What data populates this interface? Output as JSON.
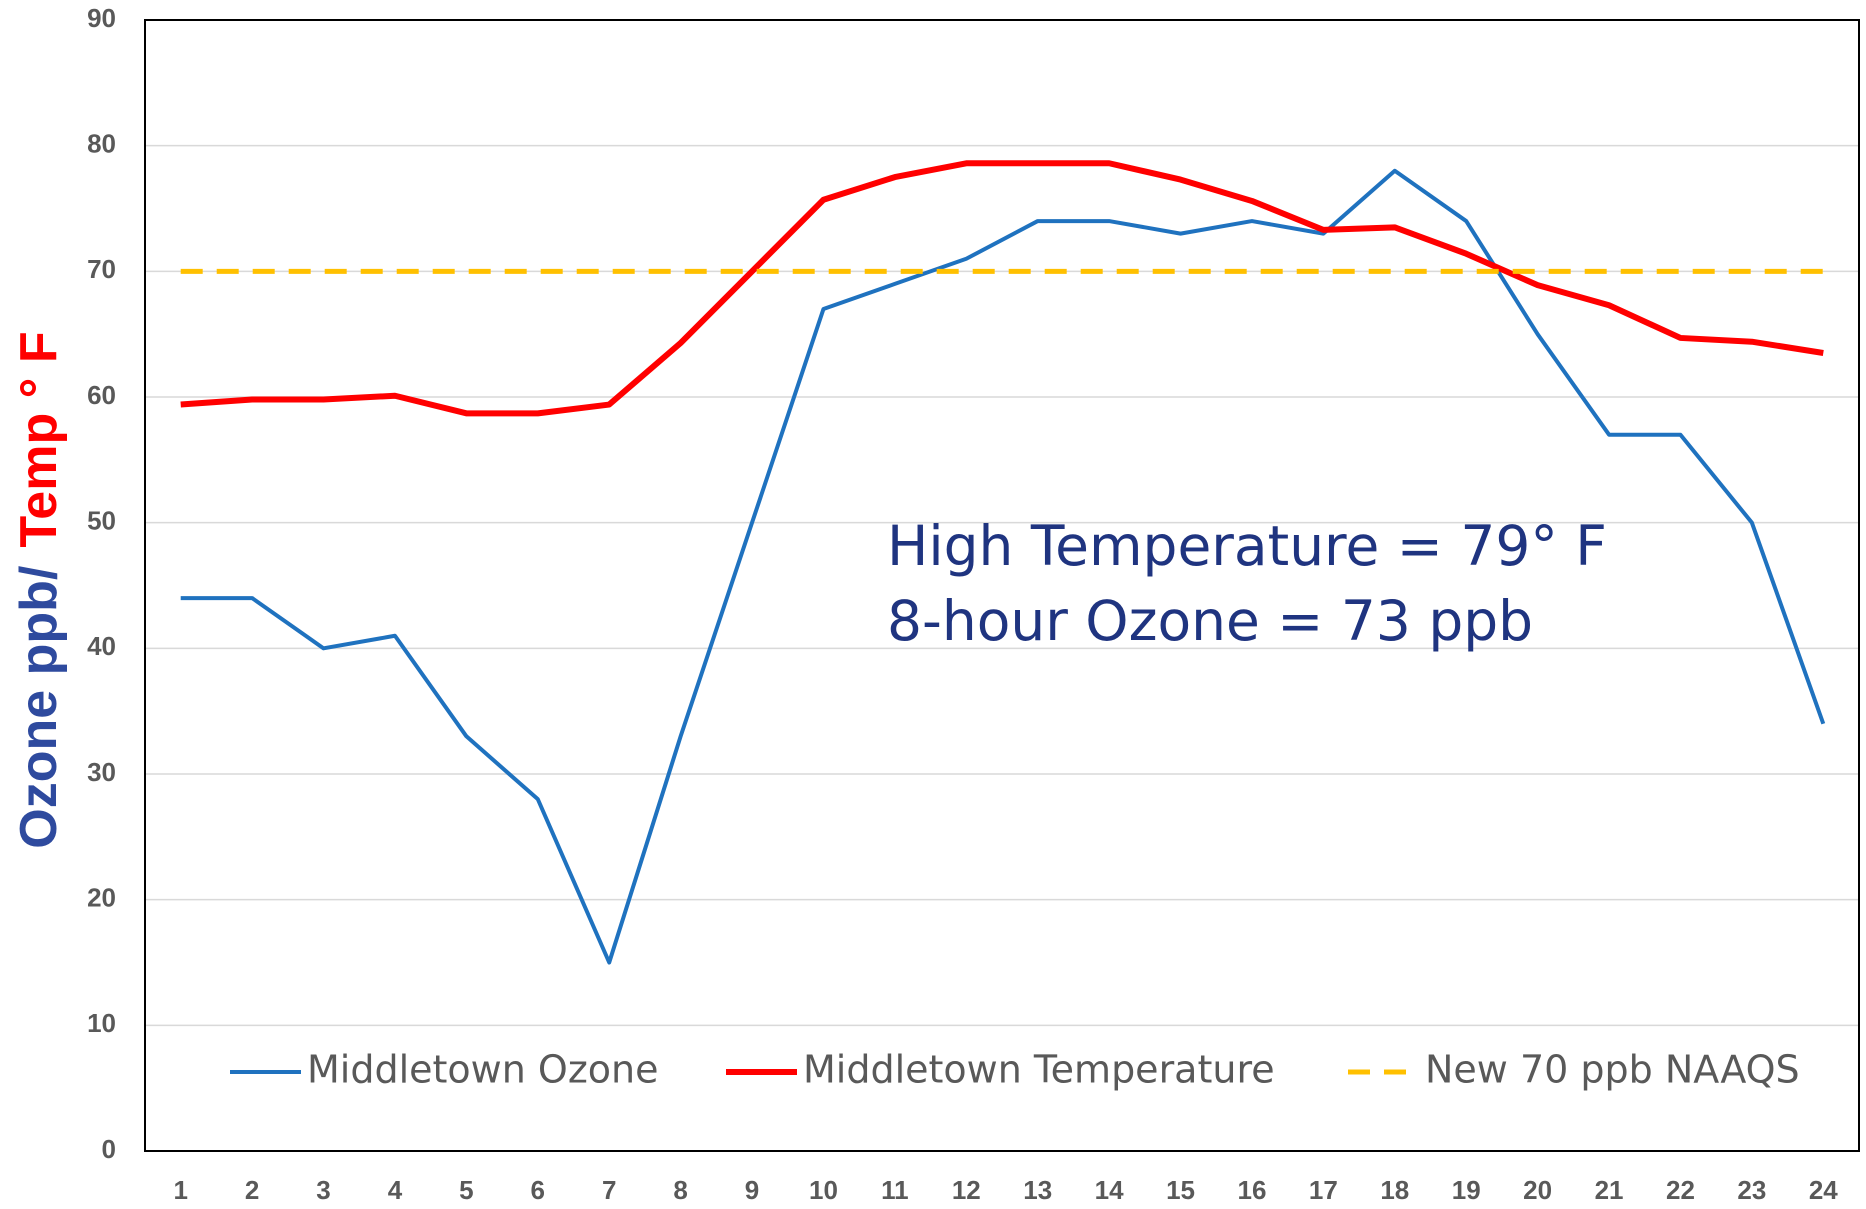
{
  "chart_data": {
    "type": "line",
    "categories": [
      1,
      2,
      3,
      4,
      5,
      6,
      7,
      8,
      9,
      10,
      11,
      12,
      13,
      14,
      15,
      16,
      17,
      18,
      19,
      20,
      21,
      22,
      23,
      24
    ],
    "series": [
      {
        "name": "Middletown Ozone",
        "color": "#1f72bf",
        "width": 4,
        "dashed": false,
        "values": [
          44,
          44,
          40,
          41,
          33,
          28,
          15,
          33,
          50,
          67,
          69,
          71,
          74,
          74,
          73,
          74,
          73,
          78,
          74,
          65,
          57,
          57,
          50,
          34
        ]
      },
      {
        "name": "Middletown Temperature",
        "color": "#ff0000",
        "width": 6,
        "dashed": false,
        "values": [
          59.4,
          59.8,
          59.8,
          60.1,
          58.7,
          58.7,
          59.4,
          64.3,
          70,
          75.7,
          77.5,
          78.6,
          78.6,
          78.6,
          77.3,
          75.6,
          73.3,
          73.5,
          71.4,
          68.9,
          67.3,
          64.7,
          64.4,
          63.5
        ]
      },
      {
        "name": "New 70 ppb NAAQS",
        "color": "#ffc000",
        "width": 5,
        "dashed": true,
        "values": [
          70,
          70,
          70,
          70,
          70,
          70,
          70,
          70,
          70,
          70,
          70,
          70,
          70,
          70,
          70,
          70,
          70,
          70,
          70,
          70,
          70,
          70,
          70,
          70
        ]
      }
    ],
    "ylabel_parts": [
      "Ozone ppb/",
      "Temp ° F"
    ],
    "ylabel_colors": [
      "#2e4a9e",
      "#ff0000"
    ],
    "annotations": [
      "High Temperature = 79° F",
      "8-hour Ozone = 73 ppb"
    ],
    "ylim": [
      0,
      90
    ],
    "yticks": [
      0,
      10,
      20,
      30,
      40,
      50,
      60,
      70,
      80,
      90
    ],
    "grid": true
  }
}
